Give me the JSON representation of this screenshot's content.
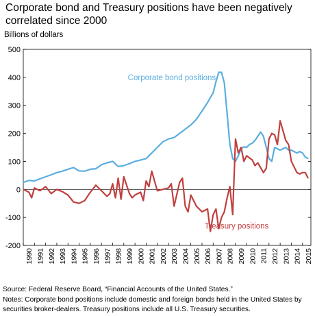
{
  "chart_data": {
    "type": "line",
    "title": "Corporate bond and Treasury positions have been negatively correlated since 2000",
    "ylabel": "Billions of dollars",
    "ylim": [
      -200,
      500
    ],
    "yticks": [
      -200,
      -100,
      0,
      100,
      200,
      300,
      400,
      500
    ],
    "xlim": [
      1990,
      2015.75
    ],
    "xticks": [
      "1990",
      "1991",
      "1992",
      "1993",
      "1994",
      "1995",
      "1996",
      "1997",
      "1998",
      "1999",
      "2000",
      "2001",
      "2002",
      "2003",
      "2004",
      "2005",
      "2006",
      "2007",
      "2008",
      "2009",
      "2010",
      "2011",
      "2012",
      "2013",
      "2014",
      "2015"
    ],
    "grid": false,
    "series": [
      {
        "name": "Corporate bond positions",
        "color": "#5aaee0",
        "label_position": [
          2003.3,
          400
        ],
        "x": [
          1990.0,
          1990.5,
          1991.0,
          1991.5,
          1992.0,
          1992.5,
          1993.0,
          1993.5,
          1994.0,
          1994.5,
          1995.0,
          1995.5,
          1996.0,
          1996.5,
          1997.0,
          1997.5,
          1998.0,
          1998.5,
          1999.0,
          1999.5,
          2000.0,
          2000.5,
          2001.0,
          2001.5,
          2002.0,
          2002.5,
          2003.0,
          2003.5,
          2004.0,
          2004.5,
          2005.0,
          2005.5,
          2006.0,
          2006.5,
          2007.0,
          2007.25,
          2007.5,
          2007.75,
          2008.0,
          2008.25,
          2008.5,
          2008.75,
          2009.0,
          2009.25,
          2009.5,
          2009.75,
          2010.0,
          2010.25,
          2010.5,
          2010.75,
          2011.0,
          2011.25,
          2011.5,
          2011.75,
          2012.0,
          2012.25,
          2012.5,
          2012.75,
          2013.0,
          2013.25,
          2013.5,
          2013.75,
          2014.0,
          2014.25,
          2014.5,
          2014.75,
          2015.0,
          2015.25,
          2015.5
        ],
        "values": [
          25,
          32,
          30,
          38,
          45,
          52,
          60,
          65,
          72,
          78,
          66,
          65,
          72,
          74,
          88,
          95,
          100,
          82,
          85,
          92,
          100,
          105,
          110,
          130,
          150,
          170,
          180,
          185,
          200,
          215,
          230,
          250,
          280,
          310,
          345,
          385,
          418,
          418,
          380,
          270,
          160,
          110,
          100,
          120,
          145,
          152,
          150,
          160,
          165,
          175,
          190,
          205,
          190,
          150,
          110,
          100,
          150,
          145,
          140,
          145,
          150,
          140,
          140,
          135,
          130,
          135,
          130,
          115,
          110
        ]
      },
      {
        "name": "Treasury positions",
        "color": "#c0403f",
        "label_position": [
          2009.1,
          -130
        ],
        "x": [
          1990.0,
          1990.5,
          1990.75,
          1991.0,
          1991.5,
          1992.0,
          1992.5,
          1993.0,
          1993.5,
          1994.0,
          1994.5,
          1995.0,
          1995.5,
          1996.0,
          1996.5,
          1997.0,
          1997.5,
          1997.75,
          1998.0,
          1998.25,
          1998.5,
          1998.75,
          1999.0,
          1999.5,
          1999.75,
          2000.0,
          2000.5,
          2000.75,
          2001.0,
          2001.25,
          2001.5,
          2002.0,
          2002.5,
          2003.0,
          2003.25,
          2003.5,
          2004.0,
          2004.25,
          2004.5,
          2004.75,
          2005.0,
          2005.5,
          2006.0,
          2006.5,
          2006.75,
          2007.0,
          2007.25,
          2007.5,
          2007.75,
          2008.0,
          2008.25,
          2008.5,
          2008.75,
          2009.0,
          2009.25,
          2009.5,
          2009.75,
          2010.0,
          2010.5,
          2010.75,
          2011.0,
          2011.5,
          2011.75,
          2012.0,
          2012.25,
          2012.5,
          2012.75,
          2013.0,
          2013.5,
          2013.75,
          2014.0,
          2014.5,
          2014.75,
          2015.0,
          2015.25,
          2015.5
        ],
        "values": [
          0,
          -10,
          -30,
          5,
          -5,
          10,
          -15,
          0,
          -8,
          -20,
          -45,
          -50,
          -40,
          -10,
          15,
          -5,
          -25,
          -15,
          20,
          -30,
          40,
          -35,
          45,
          -15,
          -30,
          -20,
          -10,
          -40,
          30,
          10,
          65,
          -5,
          0,
          5,
          20,
          -60,
          25,
          40,
          -60,
          -80,
          -20,
          -60,
          -80,
          -70,
          -150,
          -90,
          -70,
          -140,
          -100,
          -80,
          -30,
          10,
          -90,
          180,
          130,
          150,
          100,
          120,
          105,
          85,
          95,
          60,
          75,
          180,
          200,
          195,
          160,
          245,
          175,
          160,
          100,
          60,
          55,
          60,
          60,
          40
        ]
      }
    ],
    "source": "Source: Federal Reserve Board, “Financial Accounts of the United States.”",
    "notes": "Notes: Corporate bond positions include domestic and foreign bonds held in the United States by securities broker-dealers. Treasury positions include all U.S. Treasury securities."
  }
}
